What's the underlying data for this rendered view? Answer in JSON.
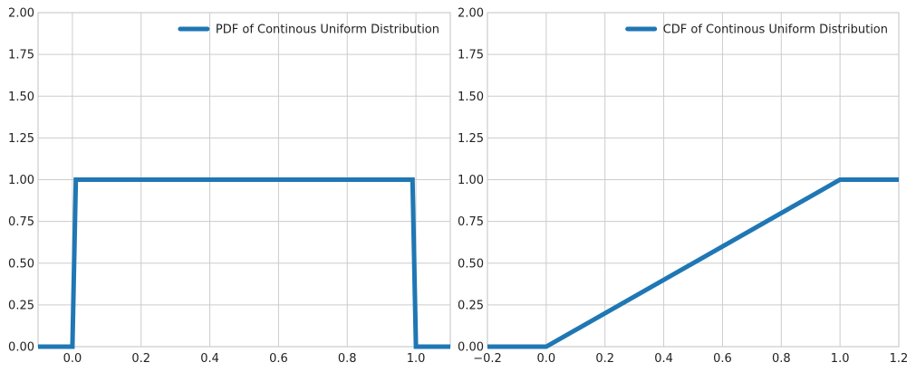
{
  "chart_data": [
    {
      "type": "line",
      "title": "",
      "xlabel": "",
      "ylabel": "",
      "xlim": [
        -0.1,
        1.1
      ],
      "ylim": [
        0,
        2
      ],
      "xticks": [
        0.0,
        0.2,
        0.4,
        0.6,
        0.8,
        1.0
      ],
      "xtick_labels": [
        "0.0",
        "0.2",
        "0.4",
        "0.6",
        "0.8",
        "1.0"
      ],
      "yticks": [
        0,
        0.25,
        0.5,
        0.75,
        1.0,
        1.25,
        1.5,
        1.75,
        2.0
      ],
      "ytick_labels": [
        "0.00",
        "0.25",
        "0.50",
        "0.75",
        "1.00",
        "1.25",
        "1.50",
        "1.75",
        "2.00"
      ],
      "grid": true,
      "legend_position": "top-right",
      "series": [
        {
          "name": "PDF of Continous Uniform Distribution",
          "color": "#1f77b4",
          "x": [
            -0.1,
            0.0,
            0.01,
            0.99,
            1.0,
            1.1
          ],
          "y": [
            0,
            0,
            1,
            1,
            0,
            0
          ]
        }
      ]
    },
    {
      "type": "line",
      "title": "",
      "xlabel": "",
      "ylabel": "",
      "xlim": [
        -0.2,
        1.2
      ],
      "ylim": [
        0,
        2
      ],
      "xticks": [
        -0.2,
        0.0,
        0.2,
        0.4,
        0.6,
        0.8,
        1.0,
        1.2
      ],
      "xtick_labels": [
        "−0.2",
        "0.0",
        "0.2",
        "0.4",
        "0.6",
        "0.8",
        "1.0",
        "1.2"
      ],
      "yticks": [
        0,
        0.25,
        0.5,
        0.75,
        1.0,
        1.25,
        1.5,
        1.75,
        2.0
      ],
      "ytick_labels": [
        "0.00",
        "0.25",
        "0.50",
        "0.75",
        "1.00",
        "1.25",
        "1.50",
        "1.75",
        "2.00"
      ],
      "grid": true,
      "legend_position": "top-right",
      "series": [
        {
          "name": "CDF of Continous Uniform Distribution",
          "color": "#1f77b4",
          "x": [
            -0.2,
            0.0,
            1.0,
            1.2
          ],
          "y": [
            0,
            0,
            1,
            1
          ]
        }
      ]
    }
  ]
}
